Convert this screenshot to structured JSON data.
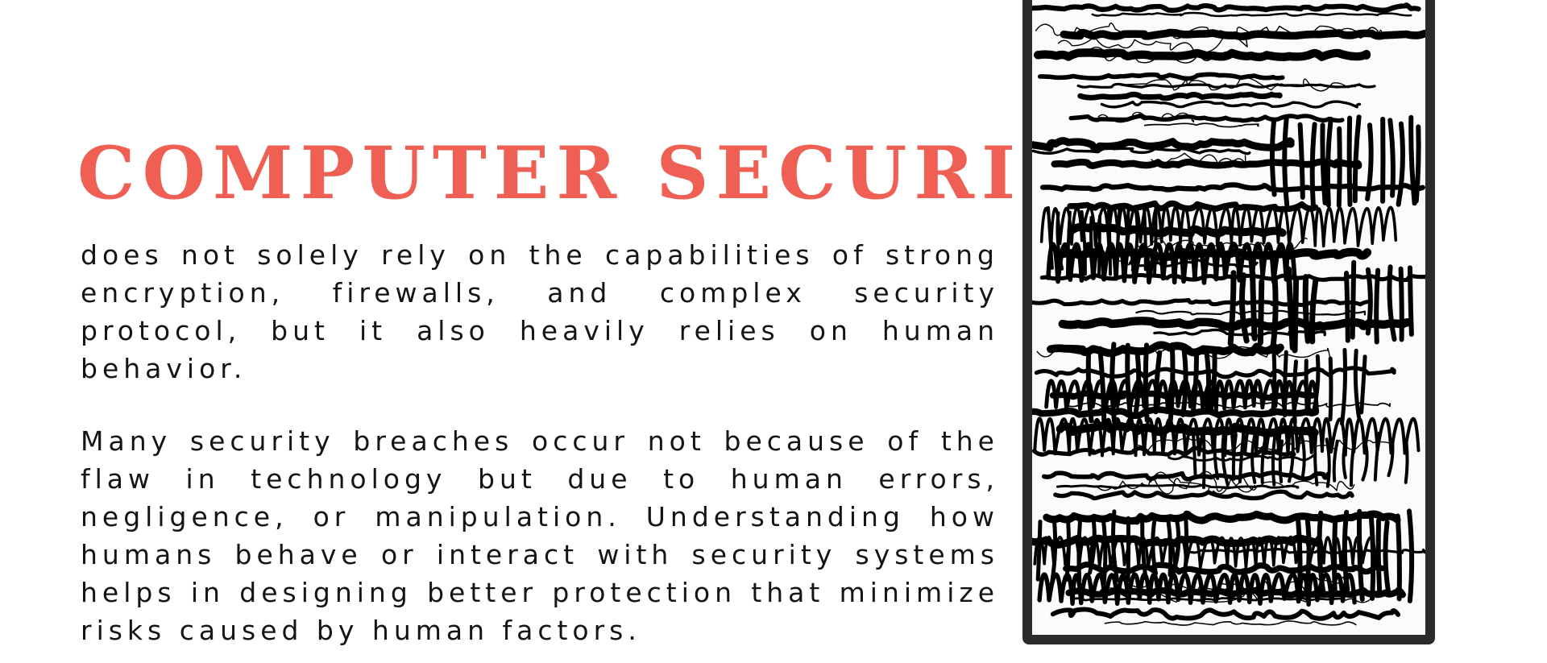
{
  "heading": "COMPUTER SECURITY",
  "paragraphs": [
    "does not solely rely on the capabilities of strong encryption, firewalls, and complex security protocol, but it also heavily relies on human behavior.",
    "Many security breaches occur not because of the flaw in technology but due to human errors, negligence, or manipulation. Understanding how humans behave or interact with security systems helps in designing better protection that minimize risks caused by human factors."
  ],
  "colors": {
    "heading": "#f05f53",
    "body_text": "#141414",
    "frame": "#2b2b2b",
    "ink": "#000000",
    "background": "#ffffff"
  }
}
